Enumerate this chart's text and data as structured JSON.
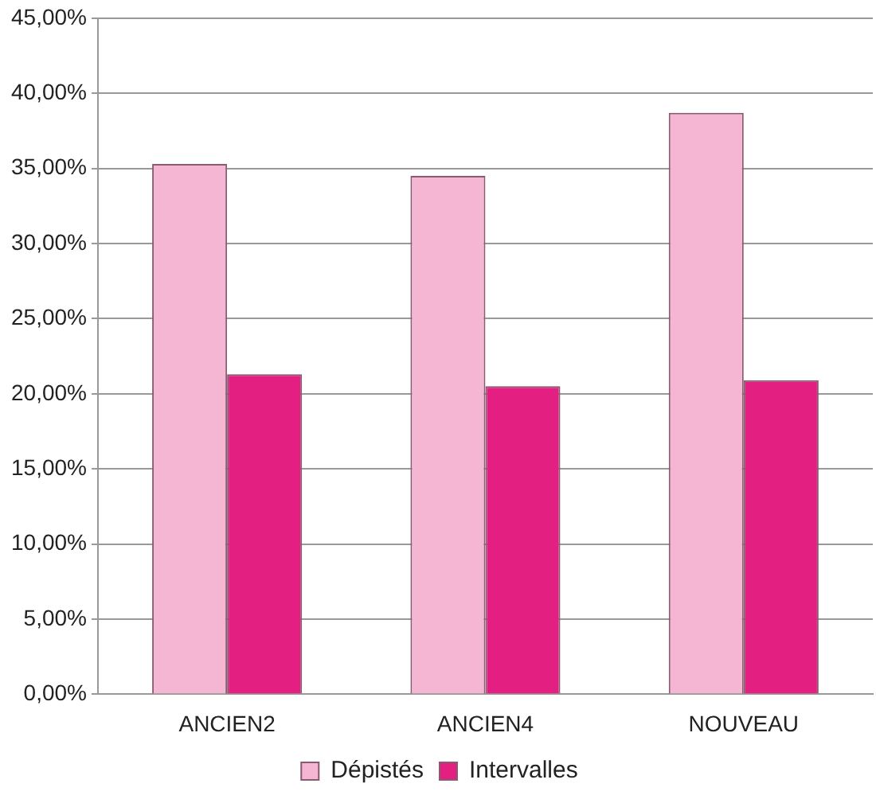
{
  "chart_data": {
    "type": "bar",
    "categories": [
      "ANCIEN2",
      "ANCIEN4",
      "NOUVEAU"
    ],
    "series": [
      {
        "name": "Dépistés",
        "color": "#f4b6d2",
        "values": [
          35.3,
          34.5,
          38.7
        ]
      },
      {
        "name": "Intervalles",
        "color": "#e31f82",
        "values": [
          21.3,
          20.5,
          20.9
        ]
      }
    ],
    "ylim": [
      0,
      45
    ],
    "yticks": [
      {
        "value": 0,
        "label": "0,00%"
      },
      {
        "value": 5,
        "label": "5,00%"
      },
      {
        "value": 10,
        "label": "10,00%"
      },
      {
        "value": 15,
        "label": "15,00%"
      },
      {
        "value": 20,
        "label": "20,00%"
      },
      {
        "value": 25,
        "label": "25,00%"
      },
      {
        "value": 30,
        "label": "30,00%"
      },
      {
        "value": 35,
        "label": "35,00%"
      },
      {
        "value": 40,
        "label": "40,00%"
      },
      {
        "value": 45,
        "label": "45,00%"
      }
    ],
    "grid": "y",
    "legend": "bottom"
  }
}
